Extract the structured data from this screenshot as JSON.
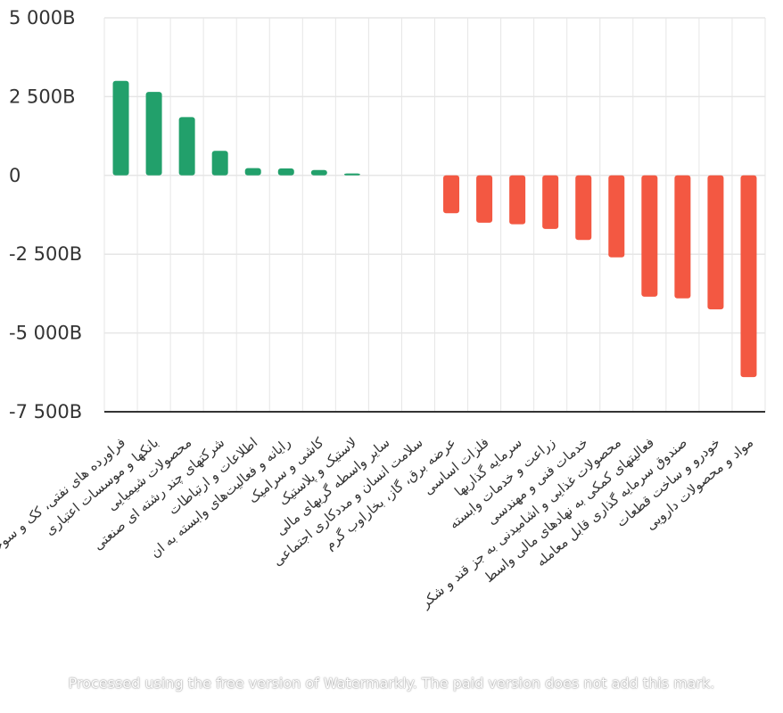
{
  "chart_data": {
    "type": "bar",
    "categories": [
      "فراورده های نفتی، کک و سوخت هسته ای",
      "بانکها و موسسات اعتباری",
      "محصولات شیمیایی",
      "شرکتهای چند رشته ای صنعتی",
      "اطلاعات و ارتباطات",
      "رایانه و فعالیت‌های وابسته به ان",
      "کاشی و سرامیک",
      "لاستیک و پلاستیک",
      "سایر واسطه گریهای مالی",
      "سلامت انسان و مددکاری اجتماعی",
      "عرضه برق، گاز، بخاراوب گرم",
      "فلزات اساسی",
      "سرمایه گذاریها",
      "زراعت و خدمات وابسته",
      "خدمات فنی و مهندسی",
      "محصولات غذایی و اشامیدنی به جز قند و شکر",
      "فعالیتهای کمکی به نهادهای مالی واسط",
      "صندوق سرمایه گذاری قابل معامله",
      "خودرو و ساخت قطعات",
      "مواد و محصولات دارویی"
    ],
    "values": [
      3000,
      2650,
      1850,
      780,
      230,
      220,
      170,
      60,
      0,
      0,
      -1200,
      -1500,
      -1550,
      -1700,
      -2050,
      -2600,
      -3850,
      -3900,
      -4250,
      -6400
    ],
    "yticks": [
      "5 000B",
      "2 500B",
      "0",
      "-2 500B",
      "-5 000B",
      "-7 500B"
    ],
    "ytick_values": [
      5000,
      2500,
      0,
      -2500,
      -5000,
      -7500
    ],
    "ylim": [
      -7500,
      5000
    ],
    "title": "",
    "xlabel": "",
    "ylabel": "",
    "grid": true,
    "colors": {
      "positive": "#22a06b",
      "negative": "#f35842",
      "grid": "#e6e6e6",
      "axis": "#333333"
    }
  },
  "watermark": {
    "text": "Processed using the free version of Watermarkly. The paid version does not add this mark."
  }
}
